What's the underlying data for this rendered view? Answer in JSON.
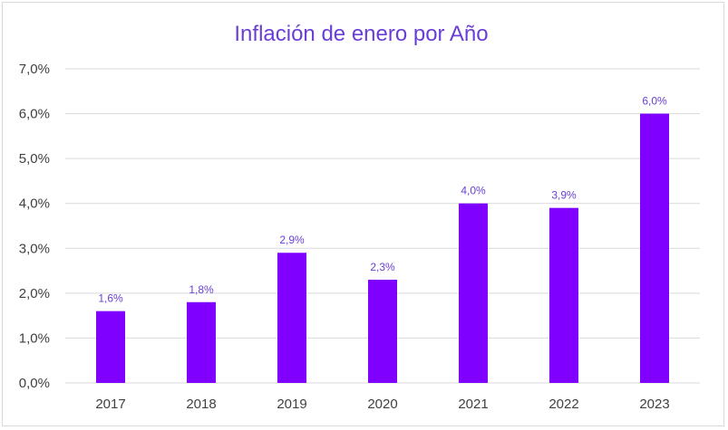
{
  "chart_data": {
    "type": "bar",
    "title": "Inflación de enero por Año",
    "xlabel": "",
    "ylabel": "",
    "categories": [
      "2017",
      "2018",
      "2019",
      "2020",
      "2021",
      "2022",
      "2023"
    ],
    "values": [
      1.6,
      1.8,
      2.9,
      2.3,
      4.0,
      3.9,
      6.0
    ],
    "data_labels": [
      "1,6%",
      "1,8%",
      "2,9%",
      "2,3%",
      "4,0%",
      "3,9%",
      "6,0%"
    ],
    "yticks": [
      0,
      1,
      2,
      3,
      4,
      5,
      6,
      7
    ],
    "ytick_labels": [
      "0,0%",
      "1,0%",
      "2,0%",
      "3,0%",
      "4,0%",
      "5,0%",
      "6,0%",
      "7,0%"
    ],
    "ylim": [
      0,
      7
    ],
    "grid": true,
    "legend": "none",
    "colors": {
      "bar": "#8000ff",
      "title": "#6a3fd6",
      "gridline": "#d9d9d9"
    }
  }
}
